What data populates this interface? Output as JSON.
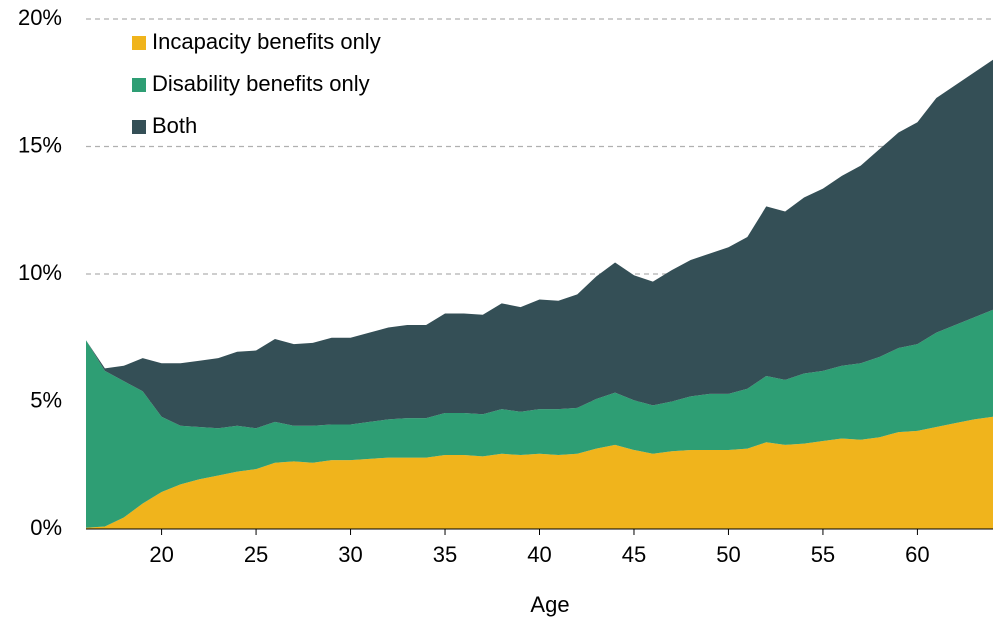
{
  "chart_data": {
    "type": "area",
    "stacked": true,
    "x_label": "Age",
    "x": [
      16,
      17,
      18,
      19,
      20,
      21,
      22,
      23,
      24,
      25,
      26,
      27,
      28,
      29,
      30,
      31,
      32,
      33,
      34,
      35,
      36,
      37,
      38,
      39,
      40,
      41,
      42,
      43,
      44,
      45,
      46,
      47,
      48,
      49,
      50,
      51,
      52,
      53,
      54,
      55,
      56,
      57,
      58,
      59,
      60,
      61,
      62,
      63,
      64
    ],
    "series": [
      {
        "name": "Incapacity benefits only",
        "color": "#f0b41c",
        "values": [
          0.05,
          0.1,
          0.45,
          1.0,
          1.45,
          1.75,
          1.95,
          2.1,
          2.25,
          2.35,
          2.6,
          2.65,
          2.6,
          2.7,
          2.7,
          2.75,
          2.8,
          2.8,
          2.8,
          2.9,
          2.9,
          2.85,
          2.95,
          2.9,
          2.95,
          2.9,
          2.95,
          3.15,
          3.3,
          3.1,
          2.95,
          3.05,
          3.1,
          3.1,
          3.1,
          3.15,
          3.4,
          3.3,
          3.35,
          3.45,
          3.55,
          3.5,
          3.6,
          3.8,
          3.85,
          4.0,
          4.15,
          4.3,
          4.4
        ]
      },
      {
        "name": "Disability benefits only",
        "color": "#2e9e74",
        "values": [
          7.35,
          6.1,
          5.35,
          4.4,
          2.95,
          2.3,
          2.05,
          1.85,
          1.8,
          1.6,
          1.6,
          1.4,
          1.45,
          1.4,
          1.4,
          1.45,
          1.5,
          1.55,
          1.55,
          1.65,
          1.65,
          1.65,
          1.75,
          1.7,
          1.75,
          1.8,
          1.8,
          1.95,
          2.05,
          1.95,
          1.9,
          1.95,
          2.1,
          2.2,
          2.2,
          2.35,
          2.6,
          2.55,
          2.75,
          2.75,
          2.85,
          3.0,
          3.15,
          3.3,
          3.4,
          3.7,
          3.85,
          4.0,
          4.2
        ]
      },
      {
        "name": "Both",
        "color": "#344f56",
        "values": [
          0,
          0.1,
          0.6,
          1.3,
          2.1,
          2.45,
          2.6,
          2.75,
          2.9,
          3.05,
          3.25,
          3.2,
          3.25,
          3.4,
          3.4,
          3.5,
          3.6,
          3.65,
          3.65,
          3.9,
          3.9,
          3.9,
          4.15,
          4.1,
          4.3,
          4.25,
          4.45,
          4.8,
          5.1,
          4.9,
          4.85,
          5.15,
          5.35,
          5.5,
          5.75,
          5.95,
          6.65,
          6.6,
          6.9,
          7.15,
          7.45,
          7.75,
          8.15,
          8.45,
          8.7,
          9.2,
          9.4,
          9.6,
          9.8
        ]
      }
    ],
    "xlim": [
      16,
      64
    ],
    "xticks": [
      20,
      25,
      30,
      35,
      40,
      45,
      50,
      55,
      60
    ],
    "ylim": [
      0,
      20
    ],
    "yticks": [
      {
        "value": 0,
        "label": "0%"
      },
      {
        "value": 5,
        "label": "5%"
      },
      {
        "value": 10,
        "label": "10%"
      },
      {
        "value": 15,
        "label": "15%"
      },
      {
        "value": 20,
        "label": "20%"
      }
    ],
    "grid": true,
    "legend": "top-left"
  }
}
